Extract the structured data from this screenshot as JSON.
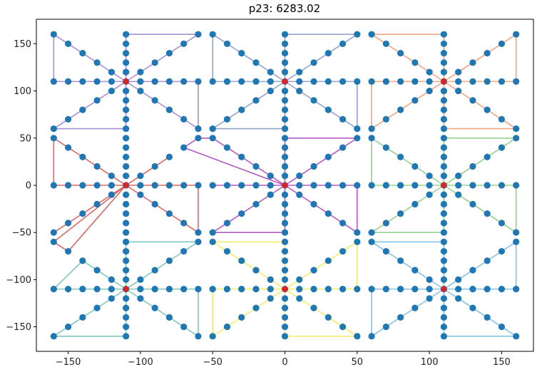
{
  "chart_data": {
    "type": "scatter",
    "title": "p23: 6283.02",
    "xlabel": "",
    "ylabel": "",
    "xlim": [
      -172,
      172
    ],
    "ylim": [
      -176,
      176
    ],
    "xticks": [
      -150,
      -100,
      -50,
      0,
      50,
      100,
      150
    ],
    "yticks": [
      -150,
      -100,
      -50,
      0,
      50,
      100,
      150
    ],
    "grid": false,
    "point_color": "#1f77b4",
    "depot_color": "#d62728",
    "clusters": [
      {
        "cx": -110,
        "cy": 110,
        "xr": [
          -160,
          -60
        ],
        "yr": [
          60,
          160
        ],
        "color": "#a58fd8"
      },
      {
        "cx": 0,
        "cy": 110,
        "xr": [
          -50,
          50
        ],
        "yr": [
          60,
          160
        ],
        "color": "#95a3cf"
      },
      {
        "cx": 110,
        "cy": 110,
        "xr": [
          60,
          160
        ],
        "yr": [
          60,
          160
        ],
        "color": "#f4a583"
      },
      {
        "cx": -110,
        "cy": 0,
        "xr": [
          -160,
          -60
        ],
        "yr": [
          -50,
          50
        ],
        "color": "#e06666"
      },
      {
        "cx": 0,
        "cy": 0,
        "xr": [
          -50,
          50
        ],
        "yr": [
          -50,
          50
        ],
        "color": "#b35cc4"
      },
      {
        "cx": 110,
        "cy": 0,
        "xr": [
          60,
          160
        ],
        "yr": [
          -50,
          50
        ],
        "color": "#98d092"
      },
      {
        "cx": -110,
        "cy": -110,
        "xr": [
          -160,
          -60
        ],
        "yr": [
          -160,
          -60
        ],
        "color": "#7fc8c0"
      },
      {
        "cx": 0,
        "cy": -110,
        "xr": [
          -50,
          50
        ],
        "yr": [
          -160,
          -60
        ],
        "color": "#f7ea6b"
      },
      {
        "cx": 110,
        "cy": -110,
        "xr": [
          60,
          160
        ],
        "yr": [
          -160,
          -60
        ],
        "color": "#86c3e8"
      }
    ],
    "extra_points": [
      {
        "x": -70,
        "y": 40
      },
      {
        "x": -80,
        "y": 30
      },
      {
        "x": -160,
        "y": -60
      },
      {
        "x": -150,
        "y": -70
      },
      {
        "x": -140,
        "y": -80
      },
      {
        "x": -50,
        "y": -60
      }
    ],
    "routes": [
      {
        "color": "#a58fd8",
        "points": [
          [
            -110,
            110
          ],
          [
            -60,
            160
          ],
          [
            -110,
            160
          ],
          [
            -110,
            110
          ],
          [
            -60,
            110
          ],
          [
            -60,
            60
          ],
          [
            -110,
            110
          ],
          [
            -160,
            60
          ],
          [
            -110,
            60
          ],
          [
            -110,
            110
          ],
          [
            -160,
            160
          ],
          [
            -160,
            110
          ],
          [
            -110,
            110
          ]
        ]
      },
      {
        "color": "#95a3cf",
        "points": [
          [
            0,
            110
          ],
          [
            50,
            160
          ],
          [
            0,
            160
          ],
          [
            0,
            110
          ],
          [
            50,
            110
          ],
          [
            50,
            60
          ],
          [
            0,
            110
          ],
          [
            -50,
            60
          ],
          [
            0,
            60
          ],
          [
            0,
            110
          ],
          [
            -50,
            160
          ],
          [
            -50,
            110
          ],
          [
            0,
            110
          ]
        ]
      },
      {
        "color": "#f4a583",
        "points": [
          [
            110,
            110
          ],
          [
            160,
            160
          ],
          [
            160,
            110
          ],
          [
            110,
            110
          ],
          [
            160,
            60
          ],
          [
            110,
            60
          ],
          [
            110,
            110
          ],
          [
            60,
            60
          ],
          [
            60,
            110
          ],
          [
            110,
            110
          ],
          [
            60,
            160
          ],
          [
            110,
            160
          ],
          [
            110,
            110
          ]
        ]
      },
      {
        "color": "#e06666",
        "points": [
          [
            -110,
            0
          ],
          [
            -80,
            30
          ],
          [
            -110,
            0
          ],
          [
            -60,
            0
          ],
          [
            -60,
            -50
          ],
          [
            -110,
            0
          ],
          [
            -150,
            -70
          ],
          [
            -160,
            -60
          ],
          [
            -110,
            0
          ],
          [
            -160,
            -50
          ],
          [
            -110,
            0
          ],
          [
            -160,
            0
          ],
          [
            -160,
            50
          ],
          [
            -110,
            0
          ]
        ]
      },
      {
        "color": "#b35cc4",
        "points": [
          [
            0,
            0
          ],
          [
            50,
            50
          ],
          [
            0,
            50
          ],
          [
            0,
            0
          ],
          [
            50,
            0
          ],
          [
            50,
            -50
          ],
          [
            0,
            0
          ],
          [
            -50,
            -50
          ],
          [
            0,
            -50
          ],
          [
            0,
            0
          ],
          [
            -50,
            50
          ],
          [
            -60,
            50
          ],
          [
            -70,
            40
          ],
          [
            0,
            0
          ],
          [
            -50,
            0
          ],
          [
            0,
            0
          ]
        ]
      },
      {
        "color": "#98d092",
        "points": [
          [
            110,
            0
          ],
          [
            160,
            50
          ],
          [
            110,
            50
          ],
          [
            110,
            0
          ],
          [
            160,
            0
          ],
          [
            160,
            -50
          ],
          [
            110,
            0
          ],
          [
            60,
            -50
          ],
          [
            110,
            -50
          ],
          [
            110,
            0
          ],
          [
            60,
            50
          ],
          [
            60,
            0
          ],
          [
            110,
            0
          ]
        ]
      },
      {
        "color": "#7fc8c0",
        "points": [
          [
            -110,
            -110
          ],
          [
            -60,
            -60
          ],
          [
            -110,
            -60
          ],
          [
            -110,
            -110
          ],
          [
            -60,
            -110
          ],
          [
            -60,
            -160
          ],
          [
            -110,
            -110
          ],
          [
            -160,
            -160
          ],
          [
            -110,
            -160
          ],
          [
            -110,
            -110
          ],
          [
            -140,
            -80
          ],
          [
            -160,
            -110
          ],
          [
            -110,
            -110
          ]
        ]
      },
      {
        "color": "#f7ea6b",
        "points": [
          [
            0,
            -110
          ],
          [
            50,
            -60
          ],
          [
            50,
            -110
          ],
          [
            0,
            -110
          ],
          [
            50,
            -160
          ],
          [
            0,
            -160
          ],
          [
            0,
            -110
          ],
          [
            -50,
            -160
          ],
          [
            -50,
            -110
          ],
          [
            0,
            -110
          ],
          [
            -50,
            -60
          ],
          [
            0,
            -60
          ],
          [
            0,
            -110
          ]
        ]
      },
      {
        "color": "#86c3e8",
        "points": [
          [
            110,
            -110
          ],
          [
            160,
            -60
          ],
          [
            160,
            -110
          ],
          [
            110,
            -110
          ],
          [
            160,
            -160
          ],
          [
            110,
            -160
          ],
          [
            110,
            -110
          ],
          [
            60,
            -160
          ],
          [
            60,
            -110
          ],
          [
            110,
            -110
          ],
          [
            60,
            -60
          ],
          [
            110,
            -60
          ],
          [
            110,
            -110
          ]
        ]
      }
    ]
  }
}
